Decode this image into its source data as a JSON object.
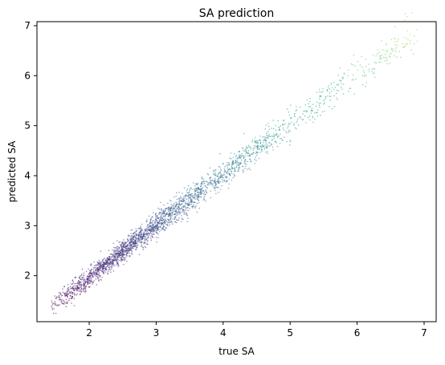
{
  "chart_data": {
    "type": "scatter",
    "title": "SA prediction",
    "xlabel": "true SA",
    "ylabel": "predicted SA",
    "xlim": [
      1.22,
      7.18
    ],
    "ylim": [
      1.08,
      7.08
    ],
    "xticks": [
      2,
      3,
      4,
      5,
      6,
      7
    ],
    "yticks": [
      2,
      3,
      4,
      5,
      6,
      7
    ],
    "grid": false,
    "colormap": "viridis",
    "point_color_encoding": "value",
    "point_alpha": 0.55,
    "points_trend": {
      "x": [
        1.45,
        1.6,
        1.8,
        2.0,
        2.25,
        2.5,
        2.75,
        3.0,
        3.25,
        3.5,
        3.75,
        4.0,
        4.25,
        4.5,
        4.75,
        5.0,
        5.25,
        5.5,
        5.75,
        6.0,
        6.25,
        6.5,
        6.75,
        6.9
      ],
      "y": [
        1.38,
        1.55,
        1.75,
        1.97,
        2.23,
        2.5,
        2.76,
        3.02,
        3.27,
        3.52,
        3.77,
        4.02,
        4.27,
        4.52,
        4.77,
        5.03,
        5.27,
        5.52,
        5.77,
        6.01,
        6.25,
        6.5,
        6.78,
        6.85
      ]
    }
  }
}
